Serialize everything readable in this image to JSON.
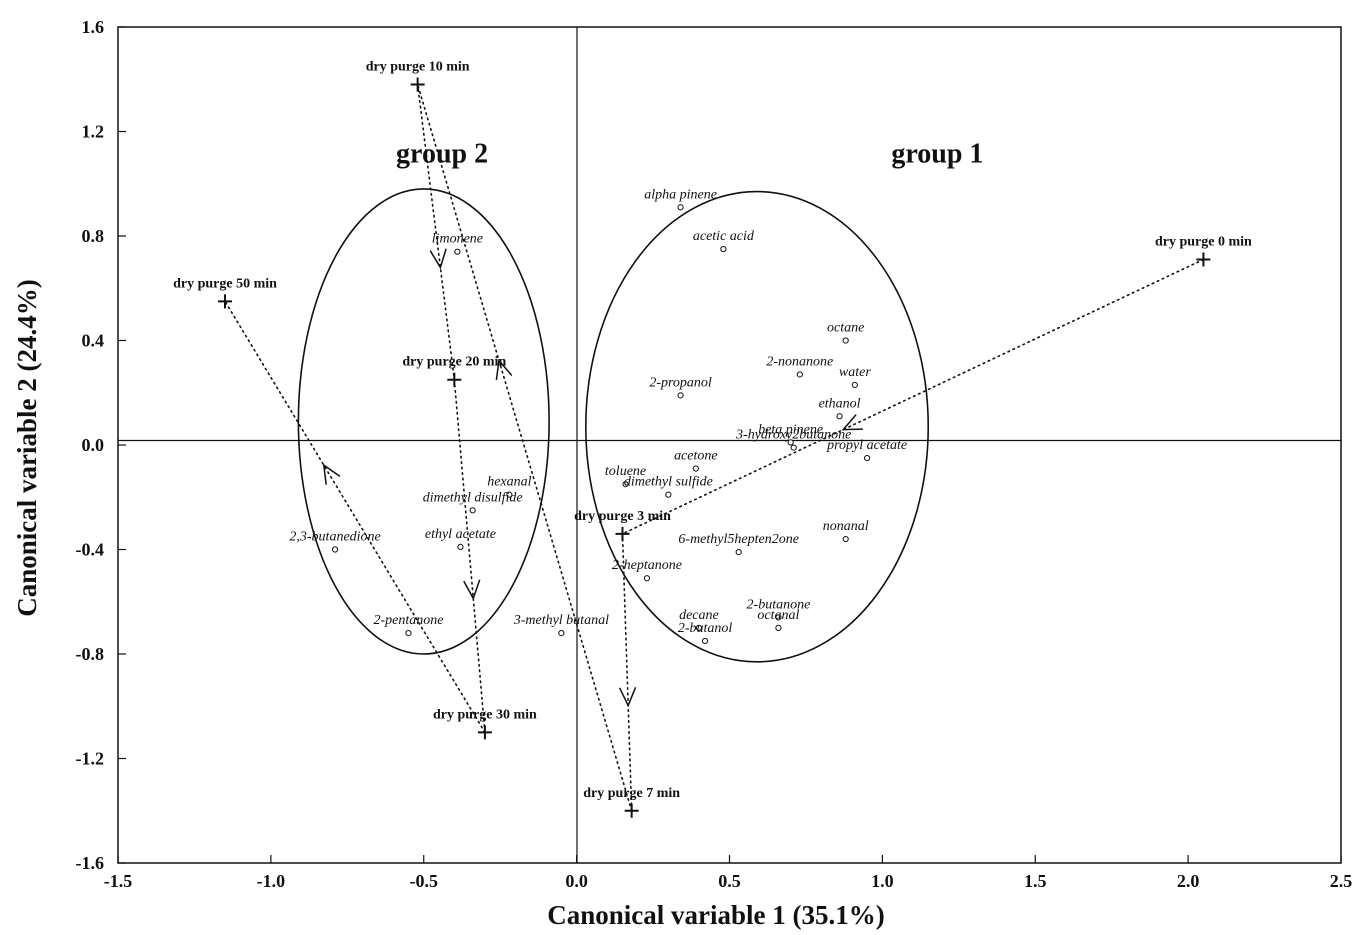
{
  "chart_data": {
    "type": "scatter",
    "xlabel": "Canonical variable 1 (35.1%)",
    "ylabel": "Canonical variable 2 (24.4%)",
    "xlim": [
      -1.5,
      2.5
    ],
    "ylim": [
      -1.6,
      1.6
    ],
    "xticks": [
      "-1.5",
      "-1.0",
      "-0.5",
      "0.0",
      "0.5",
      "1.0",
      "1.5",
      "2.0",
      "2.5"
    ],
    "yticks": [
      "1.6",
      "1.2",
      "0.8",
      "0.4",
      "0.0",
      "-0.4",
      "-0.8",
      "-1.2",
      "-1.6"
    ],
    "grid": false,
    "groups": [
      {
        "label": "group 2",
        "label_at": [
          -0.44,
          1.12
        ],
        "center": [
          -0.5,
          0.09
        ],
        "rx": 0.41,
        "ry": 0.89
      },
      {
        "label": "group 1",
        "label_at": [
          1.18,
          1.12
        ],
        "center": [
          0.59,
          0.07
        ],
        "rx": 0.56,
        "ry": 0.9
      }
    ],
    "purge_points": [
      {
        "label": "dry purge 0 min",
        "x": 2.05,
        "y": 0.71
      },
      {
        "label": "dry purge 3 min",
        "x": 0.15,
        "y": -0.34
      },
      {
        "label": "dry purge 7 min",
        "x": 0.18,
        "y": -1.4
      },
      {
        "label": "dry purge 10 min",
        "x": -0.52,
        "y": 1.38
      },
      {
        "label": "dry purge 20 min",
        "x": -0.4,
        "y": 0.25
      },
      {
        "label": "dry purge 30 min",
        "x": -0.3,
        "y": -1.1
      },
      {
        "label": "dry purge 50 min",
        "x": -1.15,
        "y": 0.55
      }
    ],
    "trajectory": [
      "dry purge 0 min",
      "dry purge 3 min",
      "dry purge 7 min",
      "dry purge 10 min",
      "dry purge 20 min",
      "dry purge 30 min",
      "dry purge 50 min"
    ],
    "compounds": [
      {
        "label": "alpha pinene",
        "x": 0.34,
        "y": 0.91
      },
      {
        "label": "acetic acid",
        "x": 0.48,
        "y": 0.75
      },
      {
        "label": "octane",
        "x": 0.88,
        "y": 0.4
      },
      {
        "label": "2-nonanone",
        "x": 0.73,
        "y": 0.27
      },
      {
        "label": "water",
        "x": 0.91,
        "y": 0.23
      },
      {
        "label": "2-propanol",
        "x": 0.34,
        "y": 0.19
      },
      {
        "label": "ethanol",
        "x": 0.86,
        "y": 0.11
      },
      {
        "label": "beta pinene",
        "x": 0.7,
        "y": 0.01
      },
      {
        "label": "3-hydroxy2butanone",
        "x": 0.71,
        "y": -0.01
      },
      {
        "label": "propyl acetate",
        "x": 0.95,
        "y": -0.05
      },
      {
        "label": "acetone",
        "x": 0.39,
        "y": -0.09
      },
      {
        "label": "toluene",
        "x": 0.16,
        "y": -0.15
      },
      {
        "label": "dimethyl sulfide",
        "x": 0.3,
        "y": -0.19
      },
      {
        "label": "nonanal",
        "x": 0.88,
        "y": -0.36
      },
      {
        "label": "6-methyl5hepten2one",
        "x": 0.53,
        "y": -0.41
      },
      {
        "label": "2-heptanone",
        "x": 0.23,
        "y": -0.51
      },
      {
        "label": "2-butanone",
        "x": 0.66,
        "y": -0.66
      },
      {
        "label": "octanal",
        "x": 0.66,
        "y": -0.7
      },
      {
        "label": "decane",
        "x": 0.4,
        "y": -0.7
      },
      {
        "label": "2-butanol",
        "x": 0.42,
        "y": -0.75
      },
      {
        "label": "limonene",
        "x": -0.39,
        "y": 0.74
      },
      {
        "label": "hexanal",
        "x": -0.22,
        "y": -0.19
      },
      {
        "label": "dimethyl disulfide",
        "x": -0.34,
        "y": -0.25
      },
      {
        "label": "ethyl acetate",
        "x": -0.38,
        "y": -0.39
      },
      {
        "label": "2,3-butanedione",
        "x": -0.79,
        "y": -0.4
      },
      {
        "label": "2-pentanone",
        "x": -0.55,
        "y": -0.72
      },
      {
        "label": "3-methyl butanal",
        "x": -0.05,
        "y": -0.72
      }
    ]
  }
}
